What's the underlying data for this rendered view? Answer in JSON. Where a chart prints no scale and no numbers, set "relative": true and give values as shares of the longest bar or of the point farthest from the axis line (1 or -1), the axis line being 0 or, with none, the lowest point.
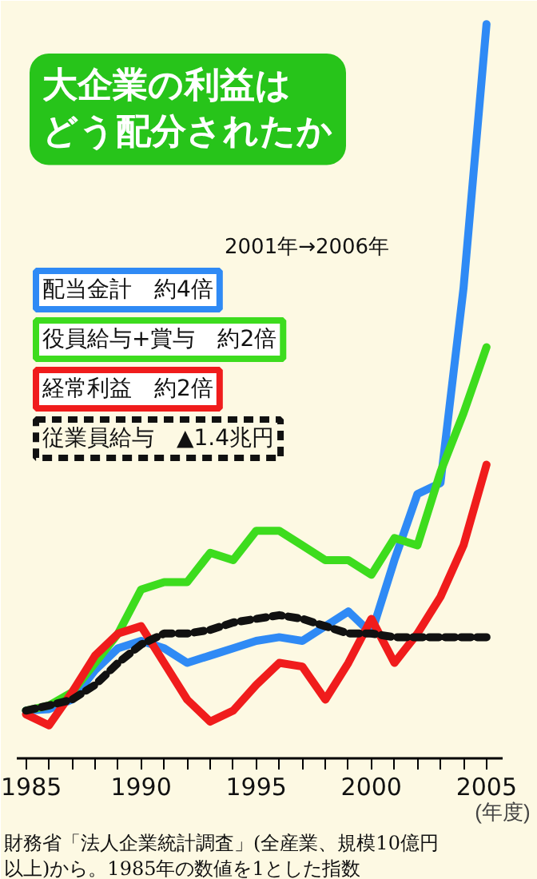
{
  "chart_data": {
    "type": "line",
    "title": "大企業の利益はどう配分されたか",
    "xlabel": "(年度)",
    "legend_title": "2001年→2006年",
    "annotations": [
      "財務省「法人企業統計調査」(全産業、規模10億円以上)から。1985年の数値を1とした指数"
    ],
    "relative": true,
    "legend": "top left",
    "grid": false,
    "marker": "none",
    "x": [
      1985,
      1986,
      1987,
      1988,
      1989,
      1990,
      1991,
      1992,
      1993,
      1994,
      1995,
      1996,
      1997,
      1998,
      1999,
      2000,
      2001,
      2002,
      2003,
      2004,
      2005
    ],
    "xlim": [
      1984.6,
      2005.7
    ],
    "xticks": [
      1985,
      {
        "value": 1986,
        "label": null
      },
      {
        "value": 1987,
        "label": null
      },
      {
        "value": 1988,
        "label": null
      },
      {
        "value": 1989,
        "label": null
      },
      1990,
      {
        "value": 1991,
        "label": null
      },
      {
        "value": 1992,
        "label": null
      },
      {
        "value": 1993,
        "label": null
      },
      {
        "value": 1994,
        "label": null
      },
      1995,
      {
        "value": 1996,
        "label": null
      },
      {
        "value": 1997,
        "label": null
      },
      {
        "value": 1998,
        "label": null
      },
      {
        "value": 1999,
        "label": null
      },
      2000,
      {
        "value": 2001,
        "label": null
      },
      {
        "value": 2002,
        "label": null
      },
      {
        "value": 2003,
        "label": null
      },
      {
        "value": 2004,
        "label": null
      },
      2005
    ],
    "series": [
      {
        "name": "配当金計　約4倍",
        "color": "#2f8af5",
        "line_style": "solid",
        "values": [
          0.065,
          0.067,
          0.08,
          0.12,
          0.15,
          0.16,
          0.15,
          0.13,
          0.14,
          0.15,
          0.16,
          0.165,
          0.16,
          0.18,
          0.2,
          0.17,
          0.27,
          0.36,
          0.375,
          0.64,
          1.0
        ]
      },
      {
        "name": "役員給与+賞与　約2倍",
        "color": "#3ddc1e",
        "line_style": "solid",
        "values": [
          0.065,
          0.072,
          0.09,
          0.13,
          0.17,
          0.23,
          0.24,
          0.24,
          0.28,
          0.27,
          0.31,
          0.31,
          0.29,
          0.27,
          0.27,
          0.25,
          0.3,
          0.29,
          0.39,
          0.47,
          0.56
        ]
      },
      {
        "name": "経常利益　約2倍",
        "color": "#f01c1c",
        "line_style": "solid",
        "values": [
          0.06,
          0.045,
          0.09,
          0.14,
          0.17,
          0.18,
          0.13,
          0.08,
          0.05,
          0.065,
          0.1,
          0.13,
          0.125,
          0.08,
          0.13,
          0.19,
          0.13,
          0.17,
          0.22,
          0.29,
          0.4
        ]
      },
      {
        "name": "従業員給与　▲1.4兆円",
        "color": "#111111",
        "line_style": "dashed",
        "values": [
          0.065,
          0.072,
          0.08,
          0.1,
          0.13,
          0.155,
          0.17,
          0.17,
          0.175,
          0.185,
          0.19,
          0.195,
          0.19,
          0.18,
          0.17,
          0.17,
          0.165,
          0.165,
          0.165,
          0.165,
          0.165
        ]
      }
    ]
  }
}
